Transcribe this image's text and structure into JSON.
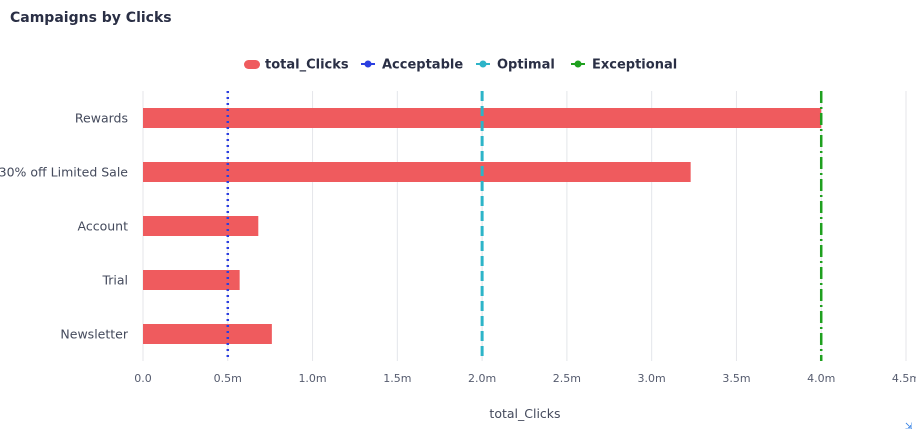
{
  "chart_data": {
    "type": "bar",
    "orientation": "horizontal",
    "title": "Campaigns by Clicks",
    "xlabel": "total_Clicks",
    "ylabel": "",
    "categories": [
      "Rewards",
      "30% off Limited Sale",
      "Account",
      "Trial",
      "Newsletter"
    ],
    "series": [
      {
        "name": "total_Clicks",
        "color": "#ef5b5e",
        "values": [
          4000000,
          3230000,
          680000,
          570000,
          760000
        ]
      }
    ],
    "reference_lines": [
      {
        "name": "Acceptable",
        "value": 500000,
        "color": "#2b3fe0",
        "style": "dotted"
      },
      {
        "name": "Optimal",
        "value": 2000000,
        "color": "#2db4c8",
        "style": "dashed"
      },
      {
        "name": "Exceptional",
        "value": 4000000,
        "color": "#1fa01f",
        "style": "dashdot"
      }
    ],
    "xlim": [
      0,
      4500000
    ],
    "xticks": [
      {
        "value": 0,
        "label": "0.0"
      },
      {
        "value": 500000,
        "label": "0.5m"
      },
      {
        "value": 1000000,
        "label": "1.0m"
      },
      {
        "value": 1500000,
        "label": "1.5m"
      },
      {
        "value": 2000000,
        "label": "2.0m"
      },
      {
        "value": 2500000,
        "label": "2.5m"
      },
      {
        "value": 3000000,
        "label": "3.0m"
      },
      {
        "value": 3500000,
        "label": "3.5m"
      },
      {
        "value": 4000000,
        "label": "4.0m"
      },
      {
        "value": 4500000,
        "label": "4.5m"
      }
    ],
    "grid": "vertical",
    "legend_position": "top-center"
  }
}
